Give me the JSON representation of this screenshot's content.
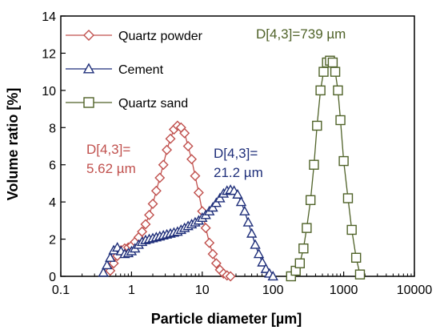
{
  "chart_data": {
    "type": "line",
    "xlabel": "Particle diameter [µm]",
    "ylabel": "Volume ratio [%]",
    "xscale": "log",
    "xlim": [
      0.1,
      10000
    ],
    "ylim": [
      0,
      14
    ],
    "x_ticks": [
      "0.1",
      "1",
      "10",
      "100",
      "1000",
      "10000"
    ],
    "y_ticks": [
      "0",
      "2",
      "4",
      "6",
      "8",
      "10",
      "12",
      "14"
    ],
    "grid": false,
    "legend_position": "top-left",
    "series": [
      {
        "name": "Quartz powder",
        "marker": "diamond",
        "color": "#c0504d",
        "x": [
          0.5,
          0.56,
          0.63,
          0.71,
          0.8,
          0.9,
          1.0,
          1.12,
          1.26,
          1.41,
          1.58,
          1.78,
          2.0,
          2.24,
          2.51,
          2.82,
          3.16,
          3.55,
          3.98,
          4.47,
          5.01,
          5.62,
          6.31,
          7.08,
          7.94,
          8.91,
          10.0,
          11.2,
          12.6,
          14.1,
          15.8,
          17.8,
          20.0,
          22.4,
          25.1
        ],
        "y": [
          0.3,
          0.7,
          1.1,
          1.4,
          1.5,
          1.55,
          1.65,
          1.85,
          2.1,
          2.4,
          2.8,
          3.3,
          3.9,
          4.6,
          5.3,
          6.0,
          6.8,
          7.4,
          7.9,
          8.1,
          8.0,
          7.7,
          7.0,
          6.3,
          5.4,
          4.5,
          3.5,
          2.6,
          1.8,
          1.2,
          0.7,
          0.35,
          0.15,
          0.05,
          0.0
        ]
      },
      {
        "name": "Cement",
        "marker": "triangle",
        "color": "#1f2f7a",
        "x": [
          0.4,
          0.45,
          0.5,
          0.56,
          0.63,
          0.71,
          0.8,
          0.9,
          1.0,
          1.12,
          1.26,
          1.41,
          1.58,
          1.78,
          2.0,
          2.24,
          2.51,
          2.82,
          3.16,
          3.55,
          3.98,
          4.47,
          5.01,
          5.62,
          6.31,
          7.08,
          7.94,
          8.91,
          10.0,
          11.2,
          12.6,
          14.1,
          15.8,
          17.8,
          20.0,
          22.4,
          25.1,
          28.2,
          31.6,
          35.5,
          39.8,
          44.7,
          50.1,
          56.2,
          63.1,
          70.8,
          79.4,
          89.1,
          100.0
        ],
        "y": [
          0.2,
          0.6,
          1.0,
          1.4,
          1.55,
          1.35,
          1.2,
          1.25,
          1.35,
          1.5,
          1.7,
          1.85,
          1.95,
          2.0,
          2.05,
          2.1,
          2.15,
          2.2,
          2.25,
          2.3,
          2.35,
          2.4,
          2.5,
          2.6,
          2.7,
          2.8,
          2.9,
          3.0,
          3.15,
          3.3,
          3.5,
          3.7,
          3.95,
          4.2,
          4.45,
          4.6,
          4.65,
          4.6,
          4.4,
          4.0,
          3.5,
          2.9,
          2.3,
          1.7,
          1.2,
          0.75,
          0.4,
          0.15,
          0.0
        ]
      },
      {
        "name": "Quartz sand",
        "marker": "square",
        "color": "#4f6228",
        "x": [
          180,
          210,
          240,
          270,
          300,
          340,
          380,
          420,
          470,
          520,
          580,
          640,
          700,
          760,
          830,
          900,
          1000,
          1150,
          1300,
          1500,
          1700
        ],
        "y": [
          0.0,
          0.3,
          0.7,
          1.5,
          2.6,
          4.1,
          6.0,
          8.1,
          10.0,
          11.0,
          11.5,
          11.6,
          11.5,
          11.0,
          10.0,
          8.4,
          6.2,
          4.2,
          2.5,
          1.0,
          0.1
        ]
      }
    ],
    "annotations": [
      {
        "lines": [
          "D[4,3]=",
          "5.62 µm"
        ],
        "color": "#c0504d"
      },
      {
        "lines": [
          "D[4,3]=",
          "21.2 µm"
        ],
        "color": "#1f2f7a"
      },
      {
        "lines": [
          "D[4,3]=739 µm"
        ],
        "color": "#4f6228"
      }
    ]
  }
}
